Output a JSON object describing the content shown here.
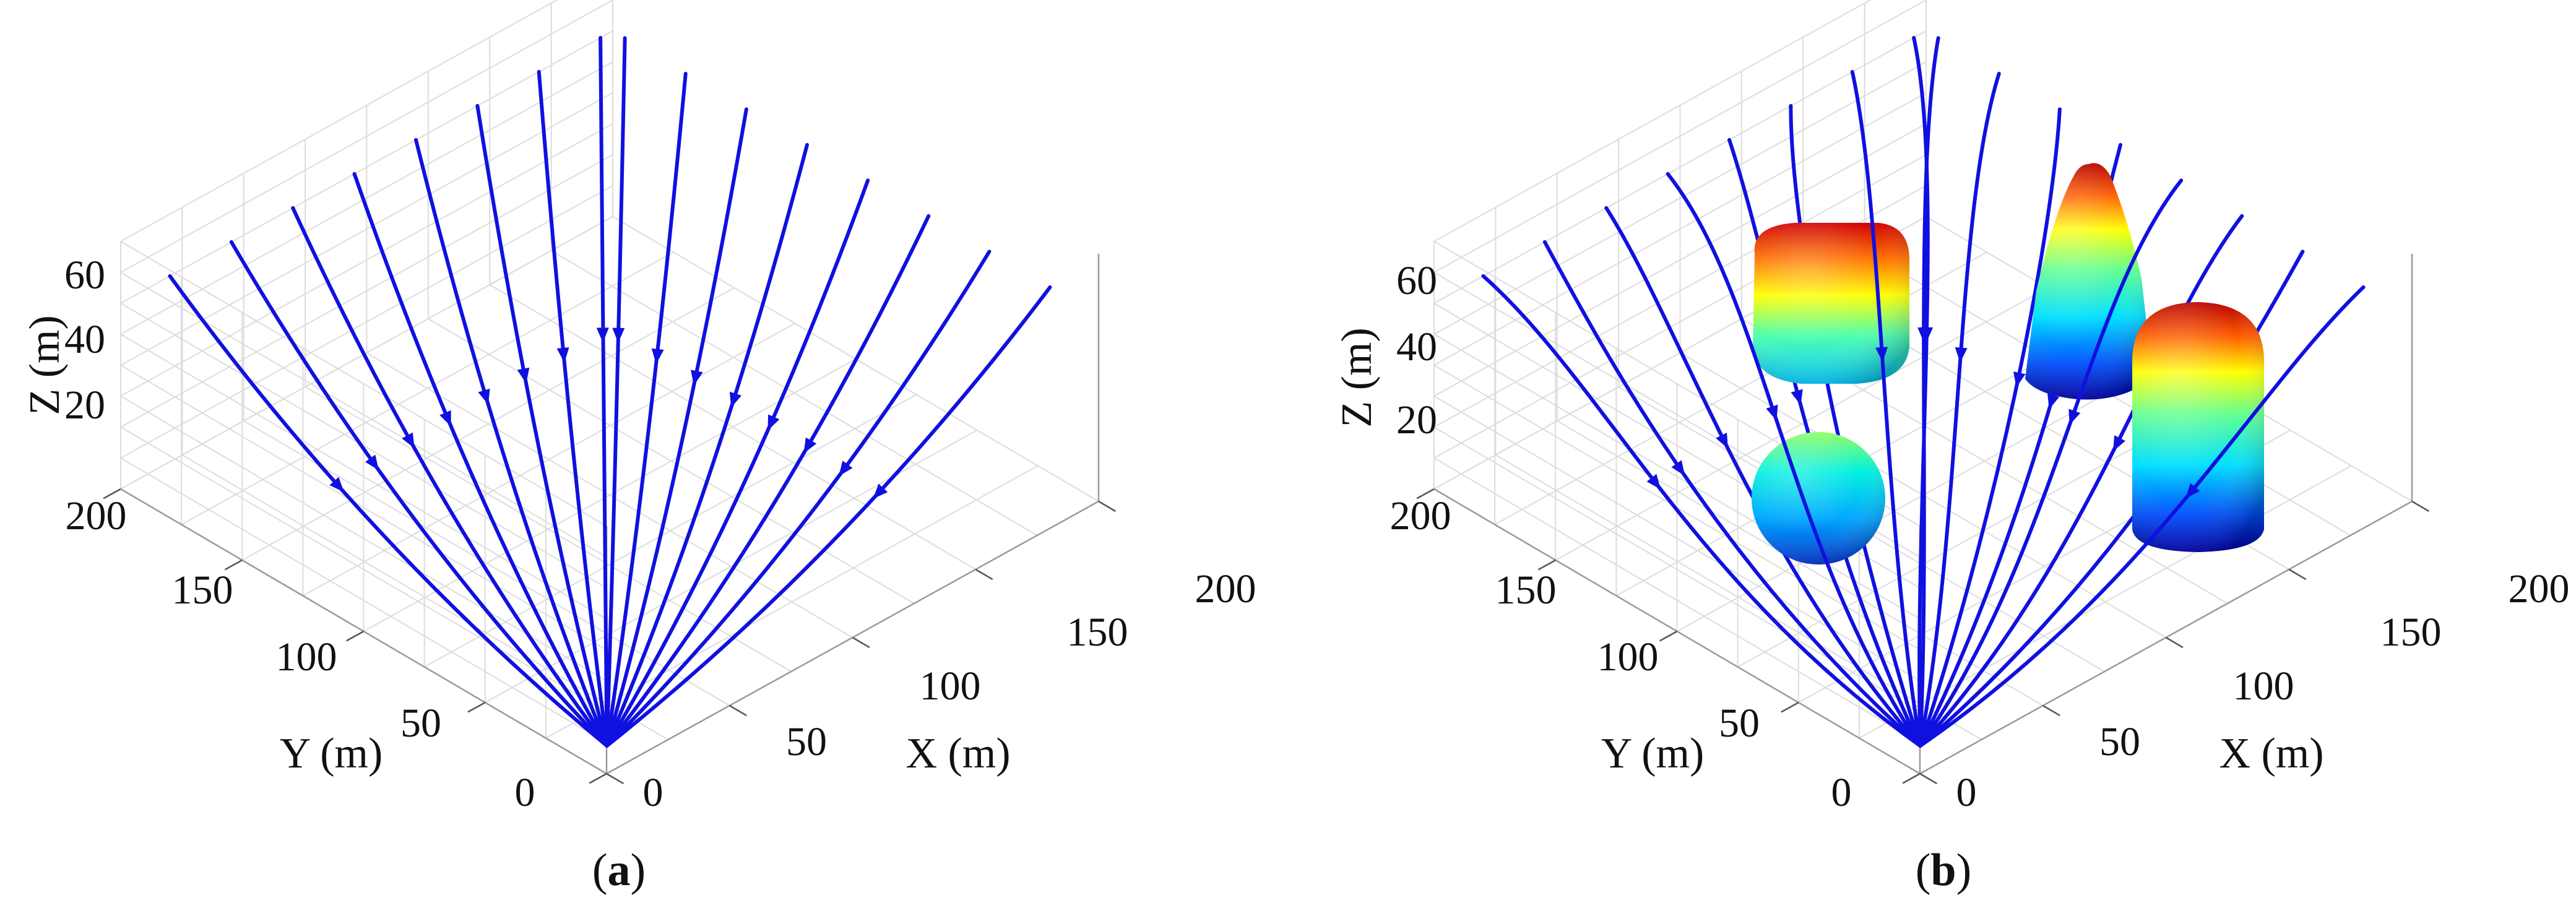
{
  "panels": [
    {
      "caption_prefix": "(",
      "caption_letter": "a",
      "caption_suffix": ")",
      "xlabel": "X (m)",
      "ylabel": "Y (m)",
      "zlabel": "Z (m)",
      "x_ticks": [
        "0",
        "50",
        "100",
        "150",
        "200"
      ],
      "y_ticks": [
        "0",
        "50",
        "100",
        "150",
        "200"
      ],
      "z_ticks": [
        "20",
        "40",
        "60"
      ]
    },
    {
      "caption_prefix": "(",
      "caption_letter": "b",
      "caption_suffix": ")",
      "xlabel": "X (m)",
      "ylabel": "Y (m)",
      "zlabel": "Z (m)",
      "x_ticks": [
        "0",
        "50",
        "100",
        "150",
        "200"
      ],
      "y_ticks": [
        "0",
        "50",
        "100",
        "150",
        "200"
      ],
      "z_ticks": [
        "20",
        "40",
        "60"
      ]
    }
  ],
  "chart_data": [
    {
      "type": "line",
      "projection": "3d",
      "xlabel": "X (m)",
      "ylabel": "Y (m)",
      "zlabel": "Z (m)",
      "xlim": [
        0,
        200
      ],
      "ylim": [
        0,
        200
      ],
      "zlim": [
        0,
        60
      ],
      "grid": true,
      "line_color": "#1010e0",
      "target": [
        10,
        10,
        0
      ],
      "series": [
        {
          "start": [
            200,
            20,
            60
          ]
        },
        {
          "start": [
            200,
            45,
            60
          ]
        },
        {
          "start": [
            200,
            70,
            60
          ]
        },
        {
          "start": [
            200,
            95,
            60
          ]
        },
        {
          "start": [
            200,
            120,
            60
          ]
        },
        {
          "start": [
            200,
            145,
            60
          ]
        },
        {
          "start": [
            200,
            170,
            60
          ]
        },
        {
          "start": [
            200,
            195,
            60
          ]
        },
        {
          "start": [
            195,
            200,
            60
          ]
        },
        {
          "start": [
            170,
            200,
            60
          ]
        },
        {
          "start": [
            145,
            200,
            60
          ]
        },
        {
          "start": [
            120,
            200,
            60
          ]
        },
        {
          "start": [
            95,
            200,
            60
          ]
        },
        {
          "start": [
            70,
            200,
            60
          ]
        },
        {
          "start": [
            45,
            200,
            60
          ]
        },
        {
          "start": [
            20,
            200,
            60
          ]
        }
      ]
    },
    {
      "type": "line",
      "projection": "3d",
      "xlabel": "X (m)",
      "ylabel": "Y (m)",
      "zlabel": "Z (m)",
      "xlim": [
        0,
        200
      ],
      "ylim": [
        0,
        200
      ],
      "zlim": [
        0,
        60
      ],
      "grid": true,
      "line_color": "#1010e0",
      "target": [
        10,
        10,
        0
      ],
      "obstacles": [
        {
          "shape": "rounded-box",
          "center": [
            60,
            150
          ],
          "z": [
            20,
            60
          ]
        },
        {
          "shape": "sphere",
          "center": [
            70,
            80
          ],
          "z": [
            0,
            30
          ]
        },
        {
          "shape": "cone",
          "center": [
            170,
            155
          ],
          "z": [
            30,
            80
          ]
        },
        {
          "shape": "capsule",
          "center": [
            165,
            85
          ],
          "z": [
            0,
            60
          ]
        }
      ],
      "series": [
        {
          "start": [
            200,
            20,
            60
          ]
        },
        {
          "start": [
            200,
            45,
            60
          ]
        },
        {
          "start": [
            200,
            70,
            60
          ]
        },
        {
          "start": [
            200,
            95,
            60
          ]
        },
        {
          "start": [
            200,
            120,
            60
          ]
        },
        {
          "start": [
            200,
            145,
            60
          ]
        },
        {
          "start": [
            200,
            170,
            60
          ]
        },
        {
          "start": [
            200,
            195,
            60
          ]
        },
        {
          "start": [
            195,
            200,
            60
          ]
        },
        {
          "start": [
            170,
            200,
            60
          ]
        },
        {
          "start": [
            145,
            200,
            60
          ]
        },
        {
          "start": [
            120,
            200,
            60
          ]
        },
        {
          "start": [
            95,
            200,
            60
          ]
        },
        {
          "start": [
            70,
            200,
            60
          ]
        },
        {
          "start": [
            45,
            200,
            60
          ]
        },
        {
          "start": [
            20,
            200,
            60
          ]
        }
      ]
    }
  ]
}
